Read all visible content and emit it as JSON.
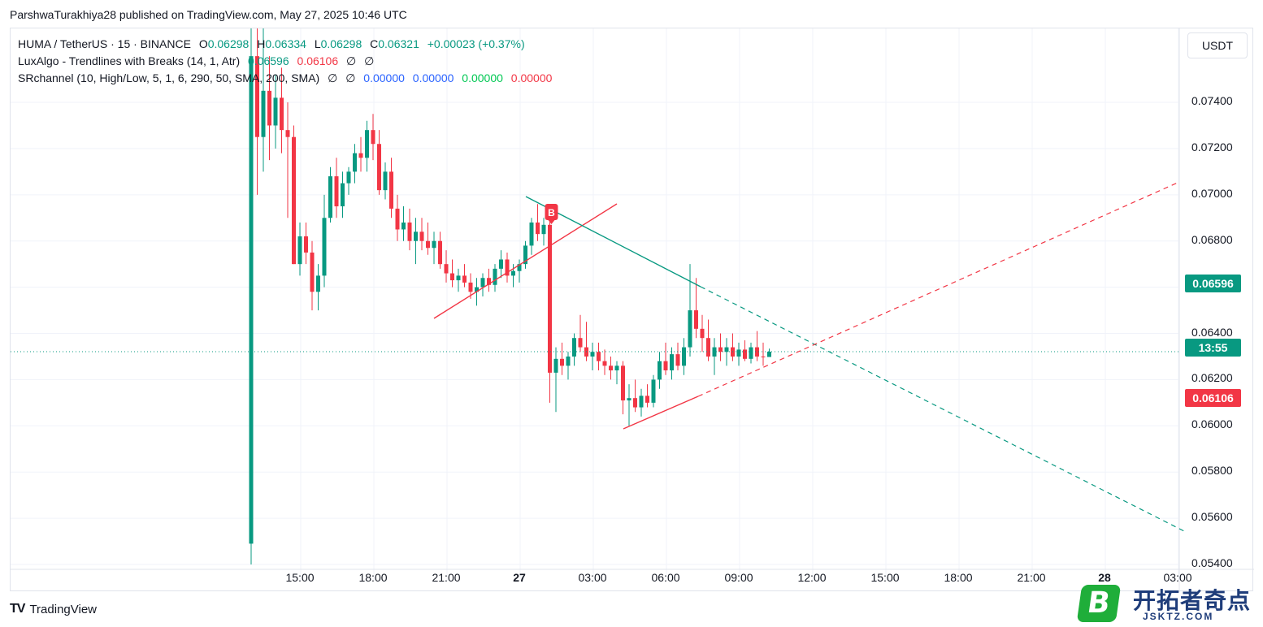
{
  "header": {
    "text": "ParshwaTurakhiya28 published on TradingView.com, May 27, 2025 10:46 UTC"
  },
  "legend": {
    "symbol": "HUMA / TetherUS · 15 · BINANCE",
    "o_label": "O",
    "o": "0.06298",
    "h_label": "H",
    "h": "0.06334",
    "l_label": "L",
    "l": "0.06298",
    "c_label": "C",
    "c": "0.06321",
    "change": "+0.00023 (+0.37%)",
    "ind1_name": "LuxAlgo - Trendlines with Breaks (14, 1, Atr)",
    "ind1_v1": "0.06596",
    "ind1_v2": "0.06106",
    "ind1_v3": "∅",
    "ind1_v4": "∅",
    "ind2_name": "SRchannel (10, High/Low, 5, 1, 6, 290, 50, SMA, 200, SMA)",
    "ind2_v1": "∅",
    "ind2_v2": "∅",
    "ind2_v3": "0.00000",
    "ind2_v4": "0.00000",
    "ind2_v5": "0.00000",
    "ind2_v6": "0.00000"
  },
  "currency_button": "USDT",
  "price_tags": {
    "upper": "0.06596",
    "countdown": "13:55",
    "lower": "0.06106"
  },
  "colors": {
    "up": "#089981",
    "down": "#f23645",
    "grid": "#f0f3fa",
    "breakout_marker": "#f23645"
  },
  "breakout_marker": "B",
  "footer": {
    "brand": "TradingView",
    "logo_mark": "TV"
  },
  "watermark": {
    "text": "开拓者奇点",
    "sub": "JSKTZ.COM",
    "badge": "B"
  },
  "chart_data": {
    "type": "candlestick",
    "symbol": "HUMA / TetherUS",
    "interval": "15",
    "ylim": [
      0.054,
      0.0772
    ],
    "y_ticks": [
      "0.07400",
      "0.07200",
      "0.07000",
      "0.06800",
      "0.06600",
      "0.06400",
      "0.06200",
      "0.06000",
      "0.05800",
      "0.05600",
      "0.05400"
    ],
    "x_ticks": [
      "15:00",
      "18:00",
      "21:00",
      "27",
      "03:00",
      "06:00",
      "09:00",
      "12:00",
      "15:00",
      "18:00",
      "21:00",
      "28",
      "03:00"
    ],
    "last_price": 0.06321,
    "ohlc": [
      [
        0.0549,
        0.0772,
        0.054,
        0.076
      ],
      [
        0.076,
        0.0772,
        0.07,
        0.0725
      ],
      [
        0.0725,
        0.0772,
        0.071,
        0.0745
      ],
      [
        0.0745,
        0.076,
        0.0715,
        0.073
      ],
      [
        0.073,
        0.0752,
        0.072,
        0.0742
      ],
      [
        0.0742,
        0.0755,
        0.0718,
        0.0728
      ],
      [
        0.0728,
        0.074,
        0.069,
        0.0725
      ],
      [
        0.0725,
        0.073,
        0.067,
        0.067
      ],
      [
        0.067,
        0.0688,
        0.0665,
        0.0682
      ],
      [
        0.0682,
        0.0688,
        0.067,
        0.0675
      ],
      [
        0.0675,
        0.068,
        0.065,
        0.0658
      ],
      [
        0.0658,
        0.067,
        0.065,
        0.0665
      ],
      [
        0.0665,
        0.07,
        0.066,
        0.069
      ],
      [
        0.069,
        0.0712,
        0.0688,
        0.0708
      ],
      [
        0.0708,
        0.0716,
        0.069,
        0.0695
      ],
      [
        0.0695,
        0.071,
        0.069,
        0.0705
      ],
      [
        0.0705,
        0.0712,
        0.07,
        0.071
      ],
      [
        0.071,
        0.0722,
        0.0705,
        0.0718
      ],
      [
        0.0718,
        0.0725,
        0.071,
        0.0716
      ],
      [
        0.0716,
        0.0732,
        0.071,
        0.0728
      ],
      [
        0.0728,
        0.0735,
        0.0715,
        0.0722
      ],
      [
        0.0722,
        0.0728,
        0.07,
        0.0702
      ],
      [
        0.0702,
        0.0714,
        0.0698,
        0.071
      ],
      [
        0.071,
        0.0716,
        0.069,
        0.0694
      ],
      [
        0.0694,
        0.07,
        0.068,
        0.0685
      ],
      [
        0.0685,
        0.0695,
        0.068,
        0.0688
      ],
      [
        0.0688,
        0.0694,
        0.0676,
        0.068
      ],
      [
        0.068,
        0.069,
        0.067,
        0.0684
      ],
      [
        0.0684,
        0.069,
        0.0676,
        0.068
      ],
      [
        0.068,
        0.0688,
        0.0674,
        0.0677
      ],
      [
        0.0677,
        0.0684,
        0.067,
        0.068
      ],
      [
        0.068,
        0.0684,
        0.0668,
        0.067
      ],
      [
        0.067,
        0.0676,
        0.0662,
        0.0666
      ],
      [
        0.0666,
        0.0672,
        0.066,
        0.0663
      ],
      [
        0.0663,
        0.0668,
        0.0658,
        0.0665
      ],
      [
        0.0665,
        0.067,
        0.066,
        0.0662
      ],
      [
        0.0662,
        0.0666,
        0.0655,
        0.0658
      ],
      [
        0.0658,
        0.0664,
        0.0652,
        0.066
      ],
      [
        0.066,
        0.0666,
        0.0656,
        0.0664
      ],
      [
        0.0664,
        0.0668,
        0.0658,
        0.0661
      ],
      [
        0.0661,
        0.067,
        0.0658,
        0.0668
      ],
      [
        0.0668,
        0.0676,
        0.0664,
        0.0672
      ],
      [
        0.0672,
        0.0675,
        0.0662,
        0.0665
      ],
      [
        0.0665,
        0.067,
        0.066,
        0.0667
      ],
      [
        0.0667,
        0.0672,
        0.0662,
        0.067
      ],
      [
        0.067,
        0.068,
        0.0668,
        0.0678
      ],
      [
        0.0678,
        0.069,
        0.0674,
        0.0688
      ],
      [
        0.0688,
        0.0696,
        0.068,
        0.0683
      ],
      [
        0.0683,
        0.069,
        0.0678,
        0.0687
      ],
      [
        0.0687,
        0.069,
        0.061,
        0.0623
      ],
      [
        0.0623,
        0.0634,
        0.0606,
        0.0629
      ],
      [
        0.0629,
        0.0636,
        0.0622,
        0.0626
      ],
      [
        0.0626,
        0.0632,
        0.062,
        0.063
      ],
      [
        0.063,
        0.064,
        0.0626,
        0.0638
      ],
      [
        0.0638,
        0.0648,
        0.0632,
        0.0634
      ],
      [
        0.0634,
        0.0645,
        0.0628,
        0.063
      ],
      [
        0.063,
        0.0636,
        0.0624,
        0.0632
      ],
      [
        0.0632,
        0.0636,
        0.0624,
        0.0628
      ],
      [
        0.0628,
        0.0633,
        0.0622,
        0.0626
      ],
      [
        0.0626,
        0.063,
        0.062,
        0.0624
      ],
      [
        0.0624,
        0.0628,
        0.0618,
        0.0626
      ],
      [
        0.0626,
        0.0628,
        0.0605,
        0.0611
      ],
      [
        0.0611,
        0.0618,
        0.06,
        0.0612
      ],
      [
        0.0612,
        0.062,
        0.0606,
        0.0608
      ],
      [
        0.0608,
        0.0616,
        0.0604,
        0.0613
      ],
      [
        0.0613,
        0.0618,
        0.0608,
        0.061
      ],
      [
        0.061,
        0.0622,
        0.0608,
        0.062
      ],
      [
        0.062,
        0.0632,
        0.0616,
        0.0628
      ],
      [
        0.0628,
        0.0636,
        0.0622,
        0.0624
      ],
      [
        0.0624,
        0.0634,
        0.062,
        0.0631
      ],
      [
        0.0631,
        0.0636,
        0.0624,
        0.0626
      ],
      [
        0.0626,
        0.0638,
        0.0622,
        0.0634
      ],
      [
        0.0634,
        0.067,
        0.063,
        0.065
      ],
      [
        0.065,
        0.0664,
        0.0638,
        0.0642
      ],
      [
        0.0642,
        0.0648,
        0.0632,
        0.0638
      ],
      [
        0.0638,
        0.0646,
        0.0628,
        0.063
      ],
      [
        0.063,
        0.0638,
        0.0622,
        0.0634
      ],
      [
        0.0634,
        0.064,
        0.0628,
        0.0632
      ],
      [
        0.0632,
        0.0638,
        0.0626,
        0.0634
      ],
      [
        0.0634,
        0.064,
        0.0628,
        0.063
      ],
      [
        0.063,
        0.0636,
        0.0626,
        0.0633
      ],
      [
        0.0633,
        0.0637,
        0.0628,
        0.0629
      ],
      [
        0.0629,
        0.0636,
        0.0627,
        0.0634
      ],
      [
        0.0634,
        0.0641,
        0.0628,
        0.063
      ],
      [
        0.063,
        0.0636,
        0.0626,
        0.06298
      ],
      [
        0.06298,
        0.06334,
        0.06298,
        0.06321
      ]
    ]
  }
}
